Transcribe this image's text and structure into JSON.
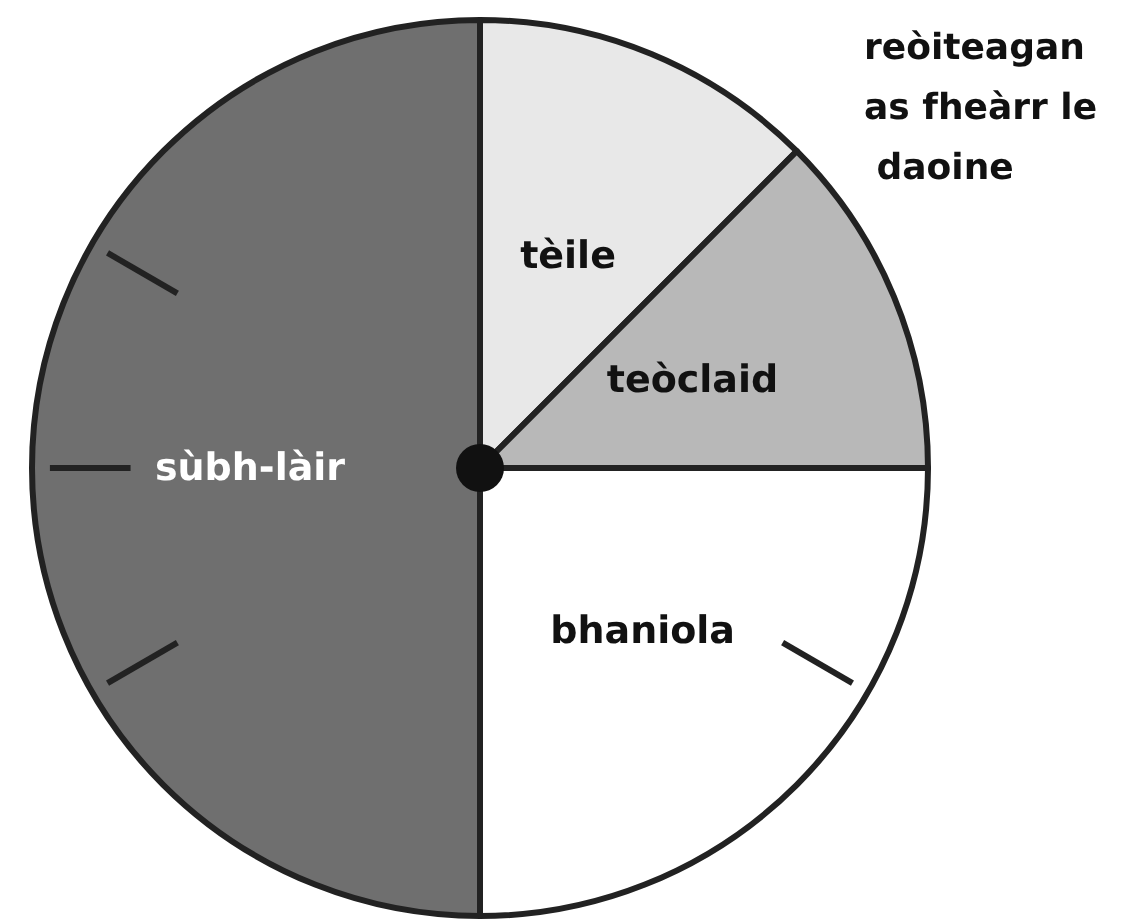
{
  "chart_data": {
    "type": "pie",
    "title": "reòiteagan as fheàrr le daoine",
    "categories": [
      "tèile",
      "teòclaid",
      "bhaniola",
      "sùbh-làir"
    ],
    "values": [
      12.5,
      12.5,
      25,
      50
    ],
    "colors": [
      "#e8e8e8",
      "#b8b8b8",
      "#ffffff",
      "#6f6f6f"
    ]
  }
}
